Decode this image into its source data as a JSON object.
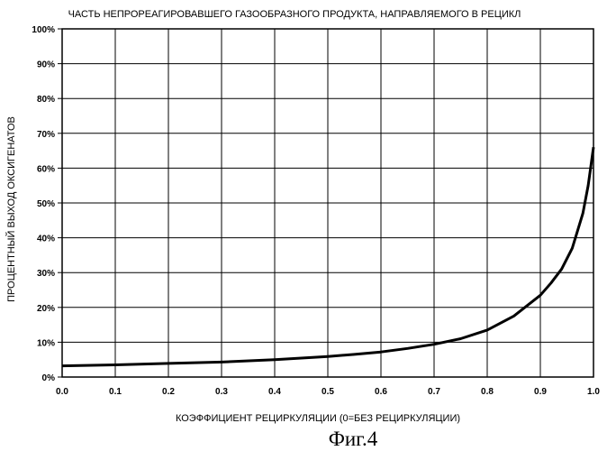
{
  "chart_data": {
    "type": "line",
    "title": "ЧАСТЬ НЕПРОРЕАГИРОВАВШЕГО ГАЗООБРАЗНОГО ПРОДУКТА, НАПРАВЛЯЕМОГО В РЕЦИКЛ",
    "xlabel": "КОЭФФИЦИЕНТ РЕЦИРКУЛЯЦИИ (0=БЕЗ РЕЦИРКУЛЯЦИИ)",
    "ylabel": "ПРОЦЕНТНЫЙ ВЫХОД ОКСИГЕНАТОВ",
    "xlim": [
      0,
      1
    ],
    "ylim": [
      0,
      100
    ],
    "grid": true,
    "x_ticks": [
      "0.0",
      "0.1",
      "0.2",
      "0.3",
      "0.4",
      "0.5",
      "0.6",
      "0.7",
      "0.8",
      "0.9",
      "1.0"
    ],
    "y_ticks": [
      "0%",
      "10%",
      "20%",
      "30%",
      "40%",
      "50%",
      "60%",
      "70%",
      "80%",
      "90%",
      "100%"
    ],
    "series": [
      {
        "x": [
          0.0,
          0.1,
          0.2,
          0.3,
          0.4,
          0.5,
          0.55,
          0.6,
          0.65,
          0.7,
          0.75,
          0.8,
          0.85,
          0.9,
          0.92,
          0.94,
          0.96,
          0.98,
          0.99,
          1.0
        ],
        "y": [
          3.2,
          3.5,
          3.9,
          4.3,
          5.0,
          5.9,
          6.5,
          7.2,
          8.2,
          9.4,
          11.0,
          13.5,
          17.5,
          23.5,
          27.0,
          31.0,
          37.0,
          47.0,
          55.0,
          66.0
        ]
      }
    ],
    "caption": "Фиг.4"
  }
}
